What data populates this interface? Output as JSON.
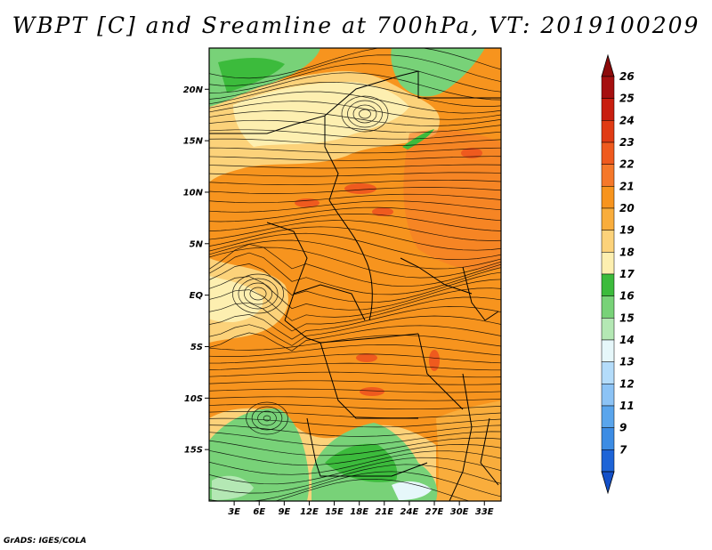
{
  "title": "WBPT [C] and Sreamline at 700hPa, VT: 2019100209",
  "credit": "GrADS: IGES/COLA",
  "map": {
    "lon_range": [
      0,
      35
    ],
    "lat_range": [
      -20,
      24
    ],
    "lat_ticks": [
      {
        "value": 20,
        "label": "20N"
      },
      {
        "value": 15,
        "label": "15N"
      },
      {
        "value": 10,
        "label": "10N"
      },
      {
        "value": 5,
        "label": "5N"
      },
      {
        "value": 0,
        "label": "EQ"
      },
      {
        "value": -5,
        "label": "5S"
      },
      {
        "value": -10,
        "label": "10S"
      },
      {
        "value": -15,
        "label": "15S"
      }
    ],
    "lon_ticks": [
      {
        "value": 3,
        "label": "3E"
      },
      {
        "value": 6,
        "label": "6E"
      },
      {
        "value": 9,
        "label": "9E"
      },
      {
        "value": 12,
        "label": "12E"
      },
      {
        "value": 15,
        "label": "15E"
      },
      {
        "value": 18,
        "label": "18E"
      },
      {
        "value": 21,
        "label": "21E"
      },
      {
        "value": 24,
        "label": "24E"
      },
      {
        "value": 27,
        "label": "27E"
      },
      {
        "value": 30,
        "label": "30E"
      },
      {
        "value": 33,
        "label": "33E"
      }
    ]
  },
  "colorbar": {
    "levels": [
      {
        "label": "26",
        "color": "#a50f0f"
      },
      {
        "label": "25",
        "color": "#c81e0f"
      },
      {
        "label": "24",
        "color": "#e03b14"
      },
      {
        "label": "23",
        "color": "#ef5a1e"
      },
      {
        "label": "22",
        "color": "#f5782a"
      },
      {
        "label": "21",
        "color": "#f7941e"
      },
      {
        "label": "20",
        "color": "#f9ad3c"
      },
      {
        "label": "19",
        "color": "#fcd27a"
      },
      {
        "label": "18",
        "color": "#fdefb0"
      },
      {
        "label": "17",
        "color": "#3cbb3c"
      },
      {
        "label": "16",
        "color": "#78d278"
      },
      {
        "label": "15",
        "color": "#b4e8b4"
      },
      {
        "label": "14",
        "color": "#e6f7fa"
      },
      {
        "label": "13",
        "color": "#b4dcfa"
      },
      {
        "label": "12",
        "color": "#8cc3f5"
      },
      {
        "label": "11",
        "color": "#5aa5ec"
      },
      {
        "label": "9",
        "color": "#3c8ce4"
      },
      {
        "label": "7",
        "color": "#1e64d7"
      }
    ],
    "top_color": "#8c0a0a",
    "bottom_color": "#1450c8"
  }
}
